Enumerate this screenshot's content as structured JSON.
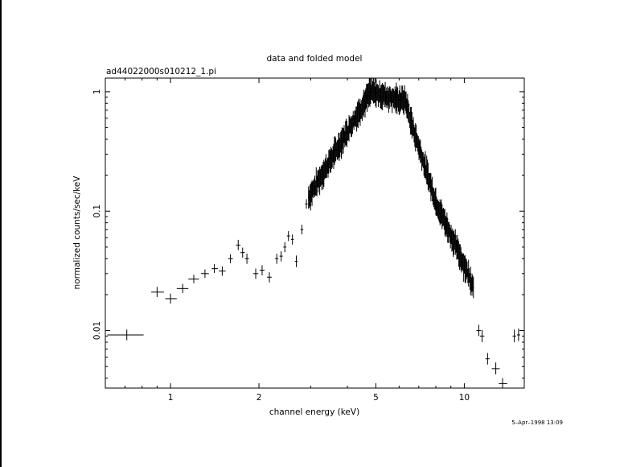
{
  "chart_data": {
    "type": "scatter",
    "title": "data and folded model",
    "subtitle": "ad44022000s010212_1.pi",
    "xlabel": "channel energy (keV)",
    "ylabel": "normalized counts/sec/keV",
    "xscale": "log",
    "yscale": "log",
    "xlim": [
      0.6,
      16
    ],
    "ylim": [
      0.0033,
      1.3
    ],
    "x_ticks": [
      {
        "value": 1,
        "label": "1"
      },
      {
        "value": 2,
        "label": "2"
      },
      {
        "value": 5,
        "label": "5"
      },
      {
        "value": 10,
        "label": "10"
      }
    ],
    "y_ticks": [
      {
        "value": 0.01,
        "label": "0.01"
      },
      {
        "value": 0.1,
        "label": "0.1"
      },
      {
        "value": 1,
        "label": "1"
      }
    ],
    "grid": false,
    "legend": "none",
    "timestamp": "5–Apr–1998 13:09",
    "color": "#000000",
    "sparse_points": [
      {
        "x": 0.71,
        "y": 0.0092,
        "xlo": 0.61,
        "xhi": 0.81,
        "ylo": 0.0083,
        "yhi": 0.0102
      },
      {
        "x": 0.9,
        "y": 0.021,
        "xlo": 0.86,
        "xhi": 0.95,
        "ylo": 0.0191,
        "yhi": 0.0232
      },
      {
        "x": 1.0,
        "y": 0.0185,
        "xlo": 0.96,
        "xhi": 1.05,
        "ylo": 0.0168,
        "yhi": 0.0204
      },
      {
        "x": 1.1,
        "y": 0.0225,
        "xlo": 1.05,
        "xhi": 1.15,
        "ylo": 0.0206,
        "yhi": 0.0246
      },
      {
        "x": 1.2,
        "y": 0.027,
        "xlo": 1.15,
        "xhi": 1.25,
        "ylo": 0.0249,
        "yhi": 0.0293
      },
      {
        "x": 1.31,
        "y": 0.03,
        "xlo": 1.27,
        "xhi": 1.35,
        "ylo": 0.0276,
        "yhi": 0.0325
      },
      {
        "x": 1.41,
        "y": 0.033,
        "xlo": 1.38,
        "xhi": 1.45,
        "ylo": 0.0303,
        "yhi": 0.036
      },
      {
        "x": 1.5,
        "y": 0.0315,
        "xlo": 1.46,
        "xhi": 1.54,
        "ylo": 0.0288,
        "yhi": 0.0345
      },
      {
        "x": 1.6,
        "y": 0.04,
        "xlo": 1.57,
        "xhi": 1.63,
        "ylo": 0.0366,
        "yhi": 0.0436
      },
      {
        "x": 1.7,
        "y": 0.052,
        "xlo": 1.67,
        "xhi": 1.73,
        "ylo": 0.0472,
        "yhi": 0.0575
      },
      {
        "x": 1.76,
        "y": 0.045,
        "xlo": 1.73,
        "xhi": 1.79,
        "ylo": 0.0408,
        "yhi": 0.0495
      },
      {
        "x": 1.82,
        "y": 0.04,
        "xlo": 1.79,
        "xhi": 1.85,
        "ylo": 0.0362,
        "yhi": 0.0441
      },
      {
        "x": 1.95,
        "y": 0.03,
        "xlo": 1.91,
        "xhi": 1.99,
        "ylo": 0.0271,
        "yhi": 0.0331
      },
      {
        "x": 2.05,
        "y": 0.032,
        "xlo": 2.01,
        "xhi": 2.09,
        "ylo": 0.029,
        "yhi": 0.0352
      },
      {
        "x": 2.17,
        "y": 0.028,
        "xlo": 2.13,
        "xhi": 2.21,
        "ylo": 0.0253,
        "yhi": 0.0308
      },
      {
        "x": 2.3,
        "y": 0.04,
        "xlo": 2.27,
        "xhi": 2.33,
        "ylo": 0.0362,
        "yhi": 0.044
      },
      {
        "x": 2.38,
        "y": 0.042,
        "xlo": 2.35,
        "xhi": 2.41,
        "ylo": 0.038,
        "yhi": 0.0462
      },
      {
        "x": 2.45,
        "y": 0.05,
        "xlo": 2.42,
        "xhi": 2.48,
        "ylo": 0.0453,
        "yhi": 0.055
      },
      {
        "x": 2.52,
        "y": 0.062,
        "xlo": 2.49,
        "xhi": 2.55,
        "ylo": 0.0562,
        "yhi": 0.068
      },
      {
        "x": 2.6,
        "y": 0.058,
        "xlo": 2.57,
        "xhi": 2.63,
        "ylo": 0.0525,
        "yhi": 0.0638
      },
      {
        "x": 2.68,
        "y": 0.038,
        "xlo": 2.65,
        "xhi": 2.71,
        "ylo": 0.034,
        "yhi": 0.0425
      },
      {
        "x": 2.8,
        "y": 0.07,
        "xlo": 2.77,
        "xhi": 2.83,
        "ylo": 0.064,
        "yhi": 0.077
      },
      {
        "x": 2.9,
        "y": 0.115,
        "xlo": 2.87,
        "xhi": 2.93,
        "ylo": 0.105,
        "yhi": 0.126
      },
      {
        "x": 11.2,
        "y": 0.01,
        "xlo": 11.0,
        "xhi": 11.4,
        "ylo": 0.009,
        "yhi": 0.0112
      },
      {
        "x": 11.5,
        "y": 0.009,
        "xlo": 11.3,
        "xhi": 11.7,
        "ylo": 0.008,
        "yhi": 0.0101
      },
      {
        "x": 12.0,
        "y": 0.0058,
        "xlo": 11.8,
        "xhi": 12.2,
        "ylo": 0.0052,
        "yhi": 0.0065
      },
      {
        "x": 12.8,
        "y": 0.0048,
        "xlo": 12.4,
        "xhi": 13.2,
        "ylo": 0.0043,
        "yhi": 0.0054
      },
      {
        "x": 13.5,
        "y": 0.0036,
        "xlo": 13.1,
        "xhi": 14.0,
        "ylo": 0.0033,
        "yhi": 0.004
      },
      {
        "x": 14.8,
        "y": 0.009,
        "xlo": 14.6,
        "xhi": 15.0,
        "ylo": 0.008,
        "yhi": 0.0102
      },
      {
        "x": 15.3,
        "y": 0.0092,
        "xlo": 15.1,
        "xhi": 15.5,
        "ylo": 0.0082,
        "yhi": 0.0104
      }
    ],
    "dense_segments": [
      {
        "x_start": 2.95,
        "x_end": 4.8,
        "y_start": 0.13,
        "y_end": 1.0
      },
      {
        "x_start": 4.8,
        "x_end": 6.0,
        "y_start": 1.0,
        "y_end": 0.85
      },
      {
        "x_start": 6.0,
        "x_end": 6.3,
        "y_start": 0.85,
        "y_end": 0.85
      },
      {
        "x_start": 6.3,
        "x_end": 6.6,
        "y_start": 0.85,
        "y_end": 0.55
      },
      {
        "x_start": 6.6,
        "x_end": 8.0,
        "y_start": 0.55,
        "y_end": 0.12
      },
      {
        "x_start": 8.0,
        "x_end": 10.8,
        "y_start": 0.12,
        "y_end": 0.023
      }
    ]
  }
}
